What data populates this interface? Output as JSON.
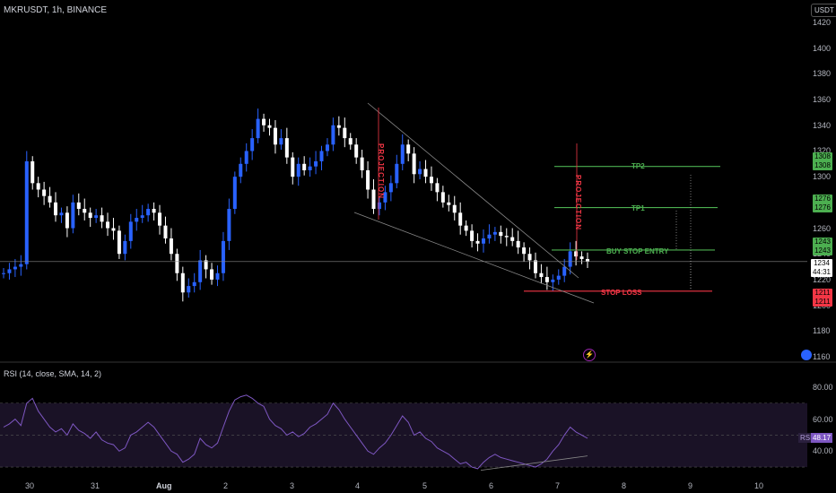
{
  "header": {
    "symbol": "MKRUSDT, 1h, BINANCE",
    "currency": "USDT"
  },
  "price_axis": {
    "ticks": [
      "1420",
      "1400",
      "1380",
      "1360",
      "1340",
      "1320",
      "1300",
      "1280",
      "1260",
      "1240",
      "1220",
      "1200",
      "1180",
      "1160"
    ]
  },
  "price_tags": {
    "tp2_a": "1308",
    "tp2_b": "1308",
    "tp1_a": "1276",
    "tp1_b": "1276",
    "entry_a": "1243",
    "entry_b": "1243",
    "last_price": "1234",
    "countdown": "44:31",
    "stop_a": "1211",
    "stop_b": "1211"
  },
  "annotations": {
    "tp2": "TP2",
    "tp1": "TP1",
    "entry": "BUY STOP ENTRY",
    "stop": "STOP LOSS",
    "projection_1": "PROJECTION",
    "projection_2": "PROJECTION"
  },
  "rsi": {
    "title": "RSI (14, close, SMA, 14, 2)",
    "label": "RSI",
    "value": "48.17",
    "ticks": [
      "80.00",
      "60.00",
      "40.00"
    ]
  },
  "time_axis": {
    "labels": [
      "30",
      "31",
      "Aug",
      "2",
      "3",
      "4",
      "5",
      "6",
      "7",
      "8",
      "9",
      "10"
    ]
  },
  "colors": {
    "bull": "#2962ff",
    "bear": "#ffffff",
    "tp": "#4caf50",
    "stop": "#f23645",
    "rsi": "#7e57c2",
    "projection": "#f23645"
  },
  "chart_data": {
    "type": "candlestick",
    "ylim": [
      1160,
      1430
    ],
    "close_path": [
      1225,
      1228,
      1230,
      1232,
      1312,
      1295,
      1290,
      1285,
      1280,
      1270,
      1272,
      1260,
      1280,
      1275,
      1272,
      1268,
      1270,
      1265,
      1260,
      1258,
      1240,
      1250,
      1265,
      1268,
      1270,
      1275,
      1272,
      1262,
      1252,
      1240,
      1225,
      1210,
      1215,
      1218,
      1235,
      1228,
      1220,
      1225,
      1250,
      1275,
      1300,
      1310,
      1320,
      1330,
      1345,
      1340,
      1338,
      1325,
      1330,
      1315,
      1300,
      1310,
      1305,
      1308,
      1312,
      1320,
      1325,
      1340,
      1338,
      1330,
      1325,
      1315,
      1305,
      1290,
      1275,
      1280,
      1288,
      1295,
      1310,
      1325,
      1318,
      1302,
      1306,
      1300,
      1295,
      1288,
      1280,
      1278,
      1272,
      1262,
      1258,
      1250,
      1248,
      1252,
      1255,
      1257,
      1254,
      1253,
      1250,
      1245,
      1240,
      1235,
      1225,
      1222,
      1218,
      1220,
      1223,
      1230,
      1242,
      1238,
      1236,
      1234
    ],
    "entry": 1243,
    "tp1": 1276,
    "tp2": 1308,
    "stop_loss": 1211,
    "last": 1234
  }
}
